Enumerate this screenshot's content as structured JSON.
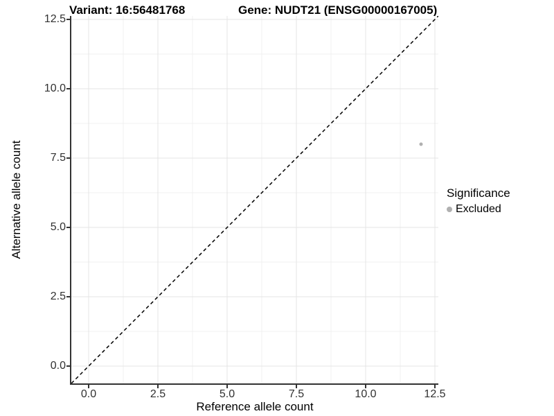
{
  "titles": {
    "left": "Variant: 16:56481768",
    "right": "Gene: NUDT21 (ENSG00000167005)"
  },
  "legend": {
    "title": "Significance",
    "items": [
      {
        "label": "Excluded",
        "color": "#b0b0b0"
      }
    ]
  },
  "colors": {
    "axis_line": "#333333",
    "tick_text": "#303030",
    "major_grid": "#e4e4e4",
    "minor_grid": "#f0f0f0",
    "reference_line": "#000000",
    "point": "#b0b0b0",
    "background": "#ffffff"
  },
  "chart_data": {
    "type": "scatter",
    "title_left": "Variant: 16:56481768",
    "title_right": "Gene: NUDT21 (ENSG00000167005)",
    "xlabel": "Reference allele count",
    "ylabel": "Alternative allele count",
    "xlim": [
      -0.625,
      12.625
    ],
    "ylim": [
      -0.625,
      12.625
    ],
    "x_ticks": [
      0,
      2.5,
      5,
      7.5,
      10,
      12.5
    ],
    "x_tick_labels": [
      "0.0",
      "2.5",
      "5.0",
      "7.5",
      "10.0",
      "12.5"
    ],
    "y_ticks": [
      0,
      2.5,
      5,
      7.5,
      10,
      12.5
    ],
    "y_tick_labels": [
      "0.0",
      "2.5",
      "5.0",
      "7.5",
      "10.0",
      "12.5"
    ],
    "minor_ticks": [
      1.25,
      3.75,
      6.25,
      8.75,
      11.25
    ],
    "grid": "major+minor",
    "legend_position": "right",
    "legend_title": "Significance",
    "series": [
      {
        "name": "Excluded",
        "color": "#b0b0b0",
        "point_radius_px": 2.5,
        "points": [
          [
            12,
            8
          ]
        ]
      }
    ],
    "reference_line": {
      "kind": "identity y=x",
      "from": [
        -0.625,
        -0.625
      ],
      "to": [
        12.625,
        12.625
      ],
      "style": "dashed",
      "color": "#000000"
    }
  }
}
